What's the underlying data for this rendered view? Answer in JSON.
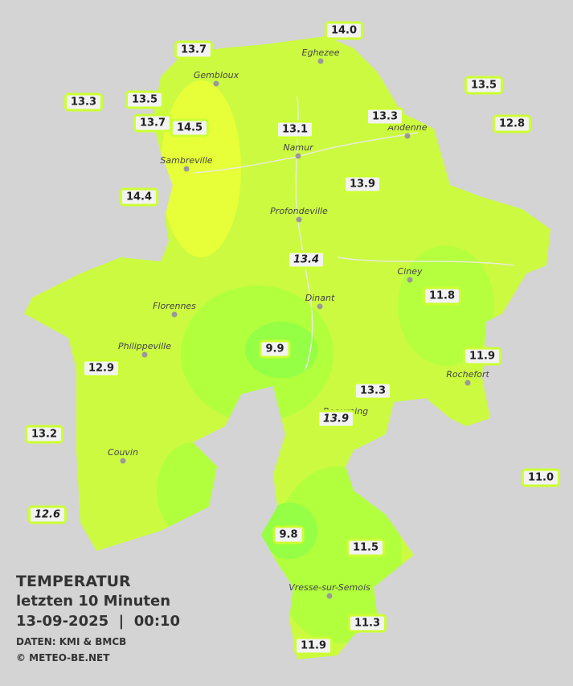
{
  "title": "TEMPERATUR",
  "subtitle": "letzten 10 Minuten",
  "datetime": "13-09-2025  |  00:10",
  "source": "DATEN: KMI & BMCB",
  "copyright": "© METEO-BE.NET",
  "cities": [
    "Eghezee",
    "Gembloux",
    "Andenne",
    "Namur",
    "Sambreville",
    "Profondeville",
    "Ciney",
    "Florennes",
    "Dinant",
    "Philippeville",
    "Rochefort",
    "Beauraing",
    "Couvin",
    "Vresse-sur-Semois"
  ],
  "stations": [
    "14.0",
    "13.7",
    "13.3",
    "13.5",
    "13.5",
    "13.7",
    "14.5",
    "13.1",
    "13.3",
    "12.8",
    "14.4",
    "13.9",
    "13.4",
    "11.8",
    "9.9",
    "11.9",
    "12.9",
    "13.3",
    "13.9",
    "13.2",
    "11.0",
    "12.6",
    "9.8",
    "11.5",
    "11.3",
    "11.9"
  ]
}
